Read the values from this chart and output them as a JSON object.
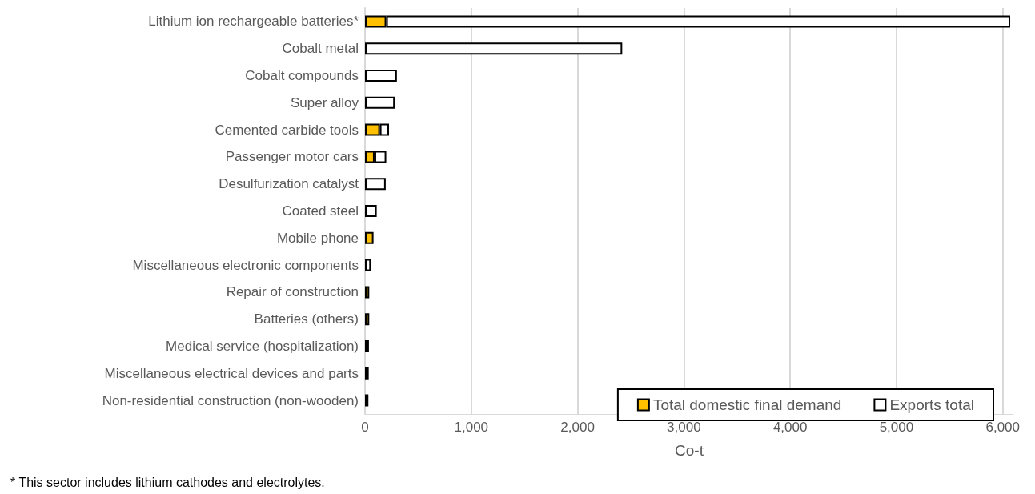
{
  "chart_data": {
    "type": "bar",
    "orientation": "horizontal",
    "stacked": true,
    "categories": [
      "Lithium ion rechargeable batteries*",
      "Cobalt metal",
      "Cobalt compounds",
      "Super alloy",
      "Cemented carbide tools",
      "Passenger motor cars",
      "Desulfurization catalyst",
      "Coated steel",
      "Mobile phone",
      "Miscellaneous electronic components",
      "Repair of construction",
      "Batteries (others)",
      "Medical service (hospitalization)",
      "Miscellaneous electrical devices and parts",
      "Non-residential construction (non-wooden)"
    ],
    "series": [
      {
        "name": "Total domestic final demand",
        "color": "#ffc000",
        "values": [
          200,
          null,
          null,
          null,
          140,
          90,
          null,
          null,
          80,
          null,
          40,
          40,
          37,
          null,
          32
        ]
      },
      {
        "name": "Exports total",
        "color": "#ffffff",
        "values": [
          5870,
          2420,
          300,
          280,
          86,
          110,
          195,
          110,
          null,
          55,
          null,
          null,
          null,
          35,
          null
        ]
      }
    ],
    "xlabel": "Co-t",
    "xlim": [
      0,
      6100
    ],
    "xticks": [
      {
        "value": 0,
        "label": "0"
      },
      {
        "value": 1000,
        "label": "1,000"
      },
      {
        "value": 2000,
        "label": "2,000"
      },
      {
        "value": 3000,
        "label": "3,000"
      },
      {
        "value": 4000,
        "label": "4,000"
      },
      {
        "value": 5000,
        "label": "5,000"
      },
      {
        "value": 6000,
        "label": "6,000"
      }
    ],
    "grid": "x",
    "legend": "bottom right",
    "annotations": [
      "* This sector includes lithium cathodes and electrolytes."
    ]
  }
}
